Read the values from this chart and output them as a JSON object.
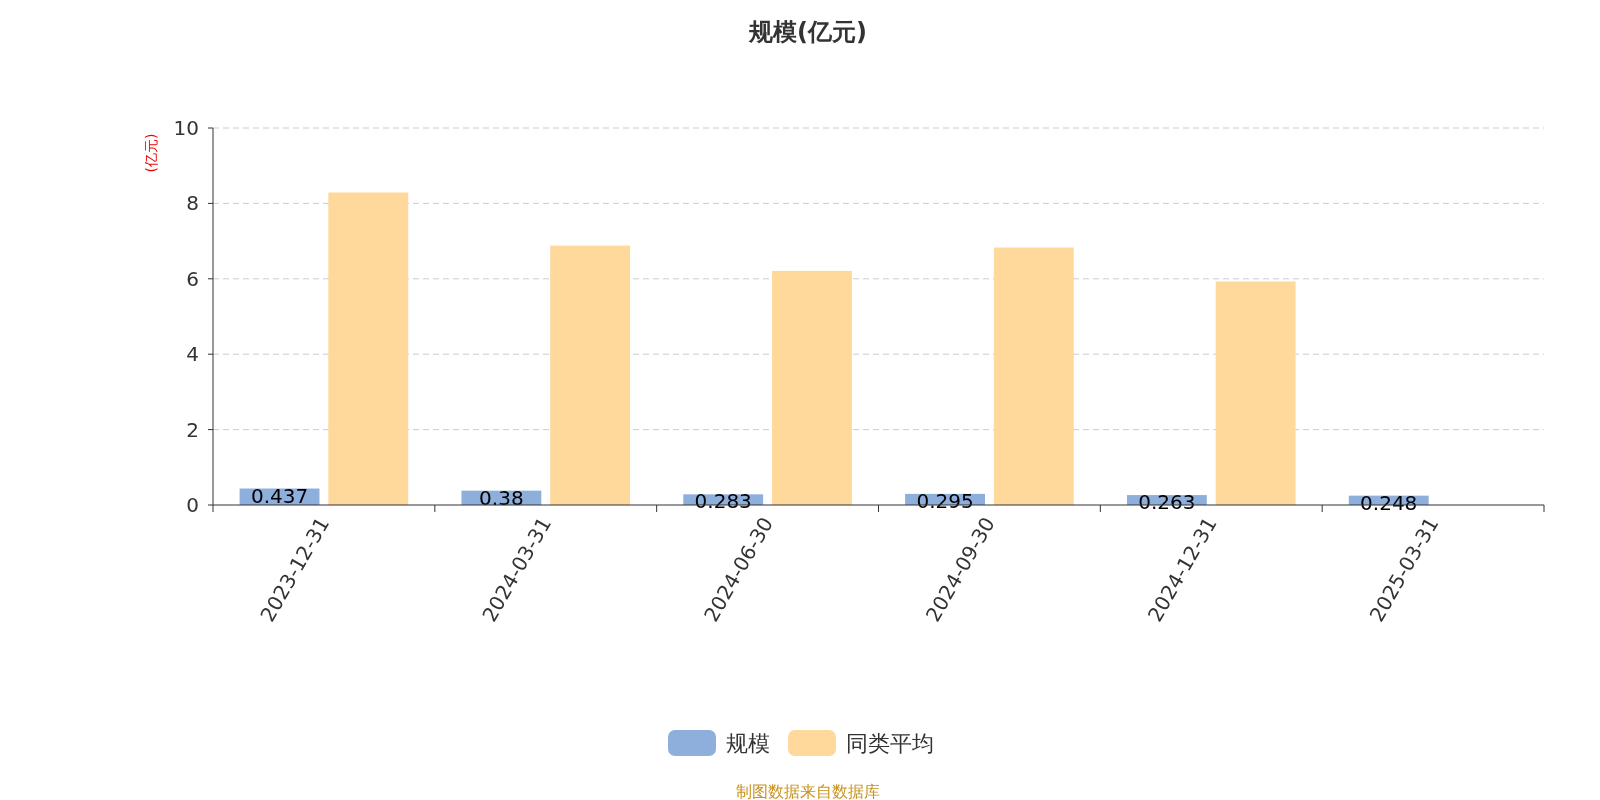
{
  "chart_data": {
    "type": "bar",
    "title": "规模(亿元)",
    "ylabel": "(亿元)",
    "categories": [
      "2023-12-31",
      "2024-03-31",
      "2024-06-30",
      "2024-09-30",
      "2024-12-31",
      "2025-03-31"
    ],
    "series": [
      {
        "name": "规模",
        "color": "#8eaedb",
        "values": [
          0.437,
          0.38,
          0.283,
          0.295,
          0.263,
          0.248
        ],
        "value_labels": [
          "0.437",
          "0.38",
          "0.283",
          "0.295",
          "0.263",
          "0.248"
        ]
      },
      {
        "name": "同类平均",
        "color": "#ffd89b",
        "values": [
          8.29,
          6.88,
          6.21,
          6.83,
          5.93,
          null
        ]
      }
    ],
    "ylim": [
      0,
      10
    ],
    "yticks": [
      0,
      2,
      4,
      6,
      8,
      10
    ],
    "grid": "y",
    "legend": "bottom",
    "annotations": [
      "制图数据来自数据库"
    ]
  }
}
